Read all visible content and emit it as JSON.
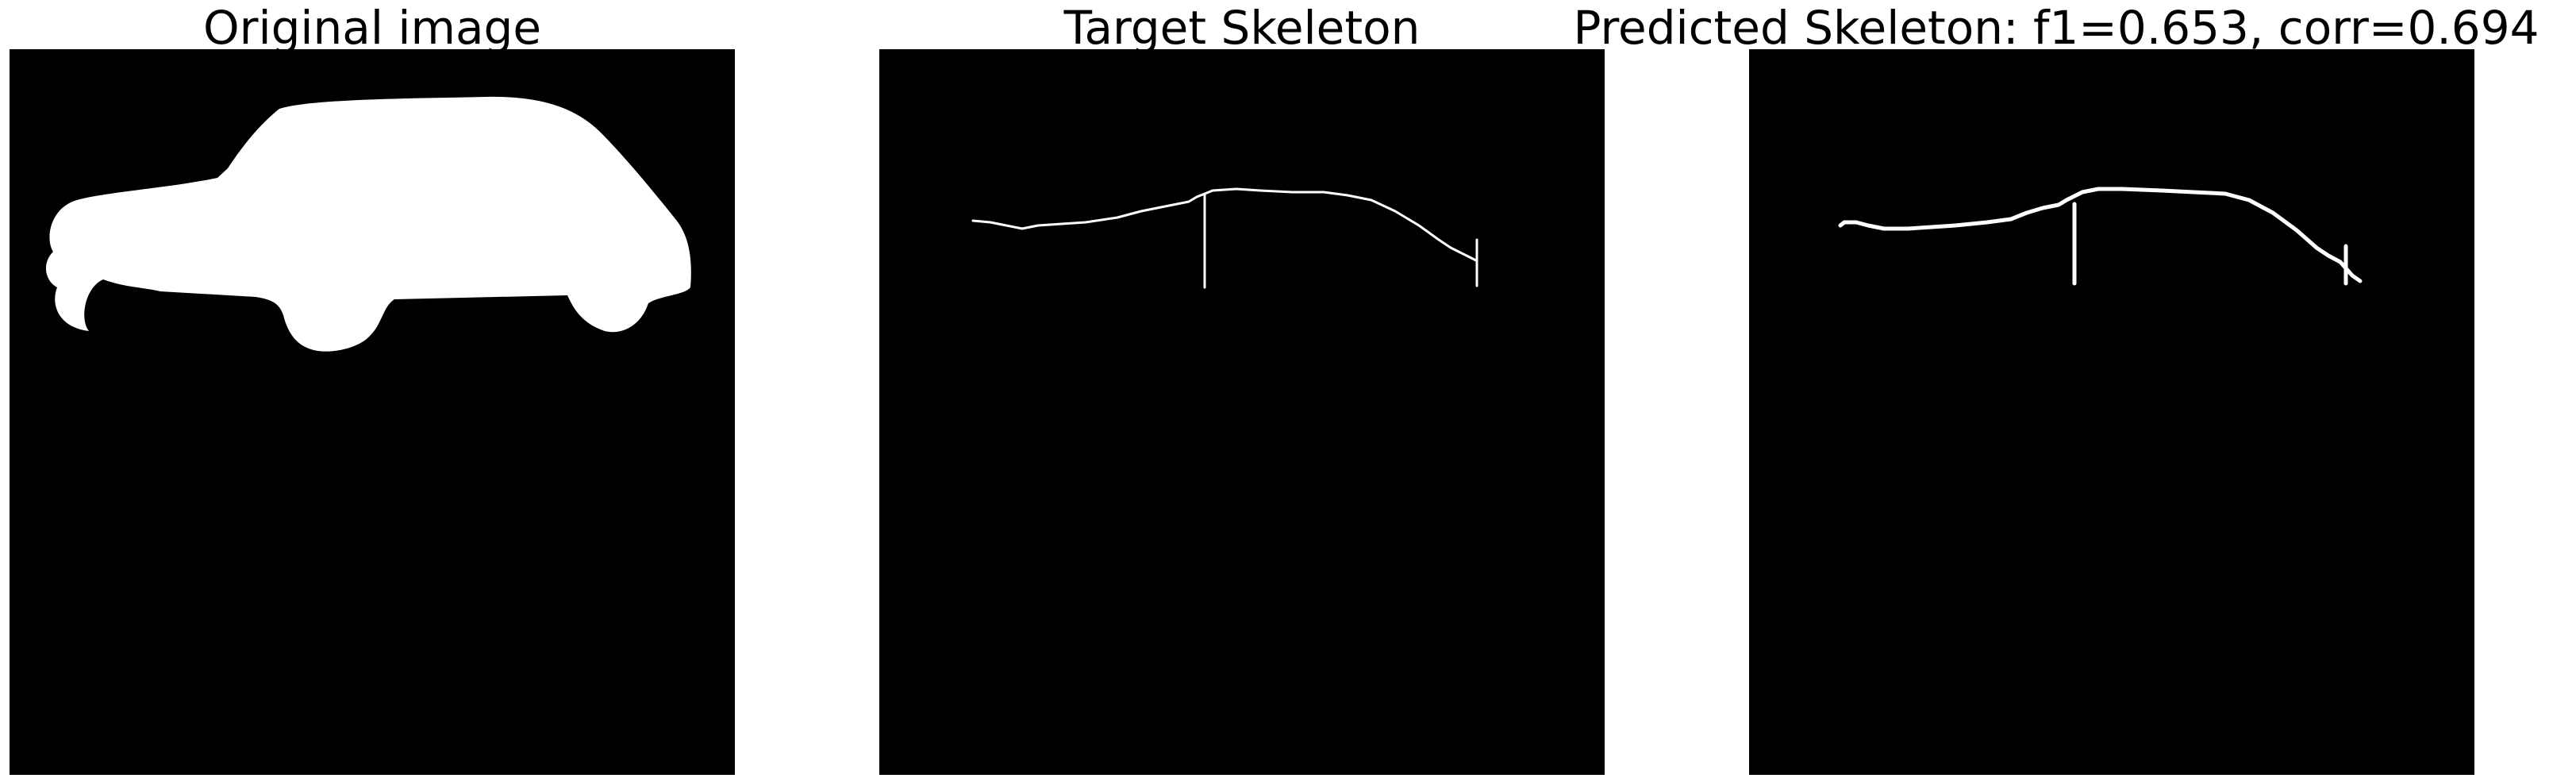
{
  "panels": [
    {
      "title": "Original image"
    },
    {
      "title": "Target Skeleton"
    },
    {
      "title": "Predicted Skeleton: f1=0.653, corr=0.694"
    }
  ],
  "colors": {
    "background": "#000000",
    "foreground": "#ffffff",
    "page": "#ffffff"
  }
}
